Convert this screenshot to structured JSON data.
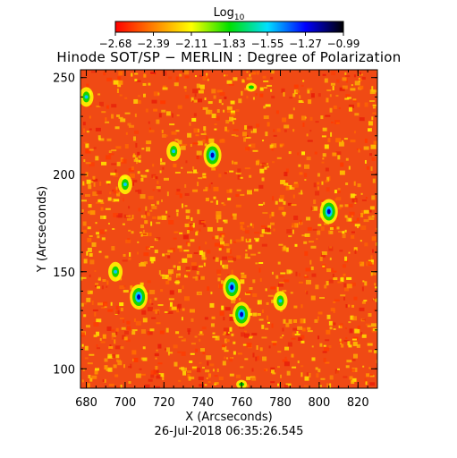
{
  "colorbar": {
    "label": "Log",
    "label_subscript": "10",
    "tick_labels": [
      "−2.68",
      "−2.39",
      "−2.11",
      "−1.83",
      "−1.55",
      "−1.27",
      "−0.99"
    ],
    "colormap": [
      "#ff0000",
      "#ff8000",
      "#ffff00",
      "#00e000",
      "#00e0ff",
      "#0000ff",
      "#000000"
    ]
  },
  "chart_data": {
    "type": "heatmap",
    "title": "Hinode SOT/SP − MERLIN : Degree of Polarization",
    "xlabel": "X (Arcseconds)",
    "ylabel": "Y (Arcseconds)",
    "xlim": [
      677,
      830
    ],
    "ylim": [
      90,
      254
    ],
    "xticks": [
      680,
      700,
      720,
      740,
      760,
      780,
      800,
      820
    ],
    "yticks": [
      100,
      150,
      200,
      250
    ],
    "color_scale": "log10",
    "vmin": -2.68,
    "vmax": -0.99,
    "background_color": "#f04a14",
    "features": [
      {
        "x": 707,
        "y": 137,
        "level": "high"
      },
      {
        "x": 755,
        "y": 142,
        "level": "high"
      },
      {
        "x": 760,
        "y": 128,
        "level": "high"
      },
      {
        "x": 745,
        "y": 210,
        "level": "high"
      },
      {
        "x": 805,
        "y": 181,
        "level": "high"
      },
      {
        "x": 700,
        "y": 195,
        "level": "medium"
      },
      {
        "x": 725,
        "y": 212,
        "level": "medium"
      },
      {
        "x": 780,
        "y": 135,
        "level": "medium"
      },
      {
        "x": 695,
        "y": 150,
        "level": "medium"
      },
      {
        "x": 765,
        "y": 245,
        "level": "low"
      },
      {
        "x": 760,
        "y": 92,
        "level": "low"
      },
      {
        "x": 680,
        "y": 240,
        "level": "medium"
      }
    ]
  },
  "footer": {
    "timestamp": "26-Jul-2018 06:35:26.545"
  }
}
